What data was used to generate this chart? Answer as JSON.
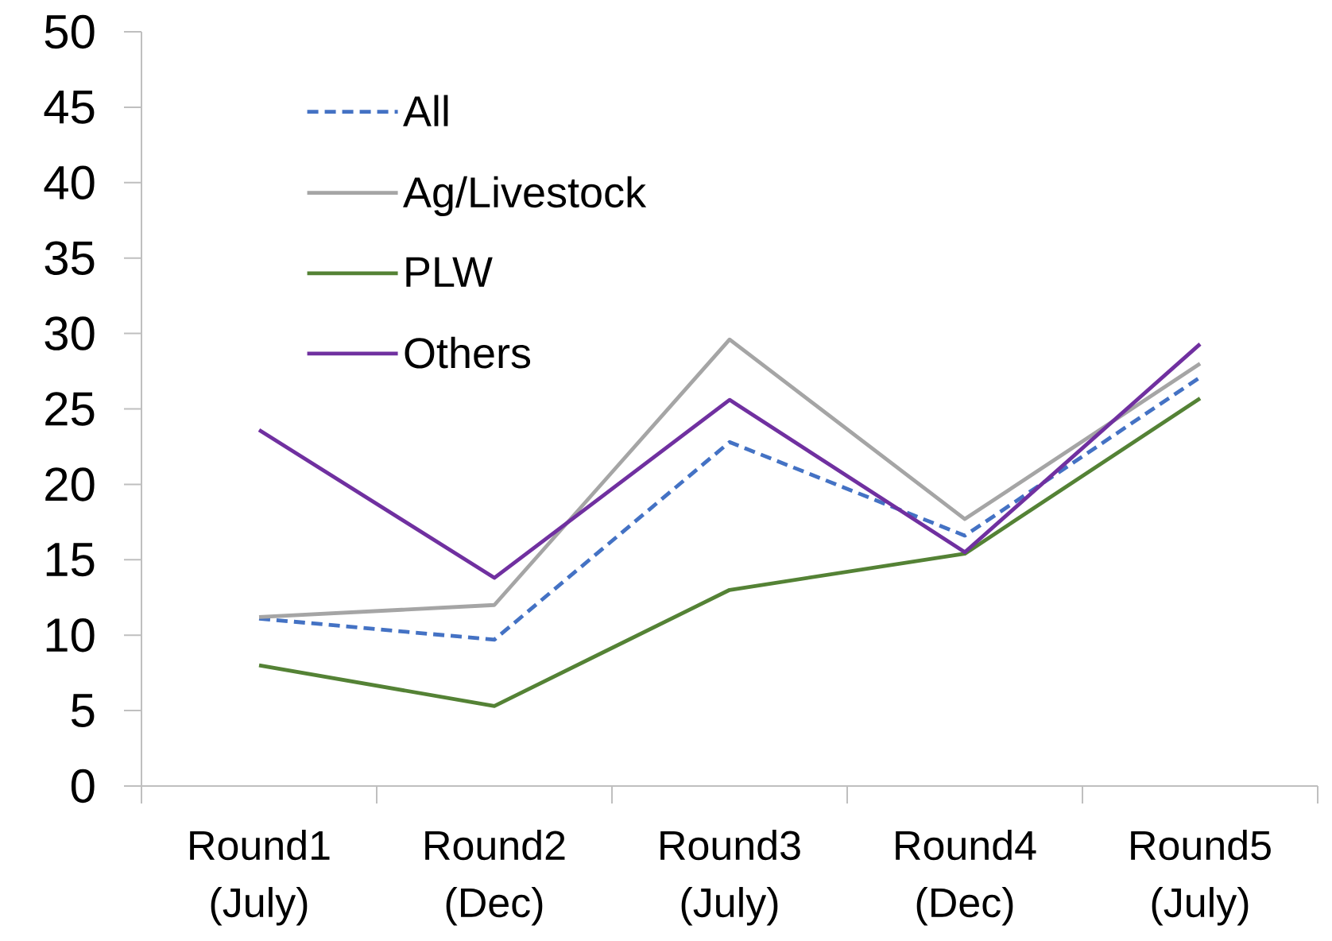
{
  "chart_data": {
    "type": "line",
    "categories": [
      "Round1 (July)",
      "Round2 (Dec)",
      "Round3 (July)",
      "Round4 (Dec)",
      "Round5 (July)"
    ],
    "series": [
      {
        "name": "All",
        "color": "#4472c4",
        "line_style": "dashed",
        "values": [
          11.1,
          9.7,
          22.8,
          16.6,
          27.1
        ]
      },
      {
        "name": "Ag/Livestock",
        "color": "#a5a5a5",
        "line_style": "solid",
        "values": [
          11.2,
          12.0,
          29.6,
          17.7,
          28.0
        ]
      },
      {
        "name": "PLW",
        "color": "#548235",
        "line_style": "solid",
        "values": [
          8.0,
          5.3,
          13.0,
          15.4,
          25.7
        ]
      },
      {
        "name": "Others",
        "color": "#7030a0",
        "line_style": "solid",
        "values": [
          23.6,
          13.8,
          25.6,
          15.5,
          29.3
        ]
      }
    ],
    "ylim": [
      0,
      50
    ],
    "yticks": [
      0,
      5,
      10,
      15,
      20,
      25,
      30,
      35,
      40,
      45,
      50
    ],
    "legend": "top left"
  }
}
